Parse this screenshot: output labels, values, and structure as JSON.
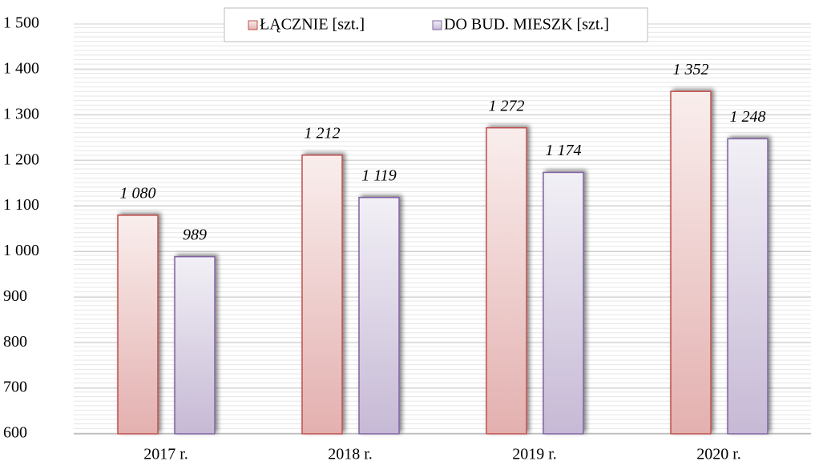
{
  "chart_data": {
    "type": "bar",
    "categories": [
      "2017 r.",
      "2018 r.",
      "2019 r.",
      "2020 r."
    ],
    "series": [
      {
        "name": "ŁĄCZNIE [szt.]",
        "color": "#c0504d",
        "values": [
          1080,
          1212,
          1272,
          1352
        ],
        "value_labels": [
          "1 080",
          "1 212",
          "1 272",
          "1 352"
        ]
      },
      {
        "name": "DO BUD. MIESZK [szt.]",
        "color": "#8064a2",
        "values": [
          989,
          1119,
          1174,
          1248
        ],
        "value_labels": [
          "989",
          "1 119",
          "1 174",
          "1 248"
        ]
      }
    ],
    "ylim": [
      600,
      1500
    ],
    "yticks": [
      600,
      700,
      800,
      900,
      {
        "value": 1000,
        "label": "1 000"
      },
      {
        "value": 1100,
        "label": "1 100"
      },
      {
        "value": 1200,
        "label": "1 200"
      },
      {
        "value": 1300,
        "label": "1 300"
      },
      {
        "value": 1400,
        "label": "1 400"
      },
      {
        "value": 1500,
        "label": "1 500"
      }
    ],
    "grid": true,
    "legend": "top"
  }
}
